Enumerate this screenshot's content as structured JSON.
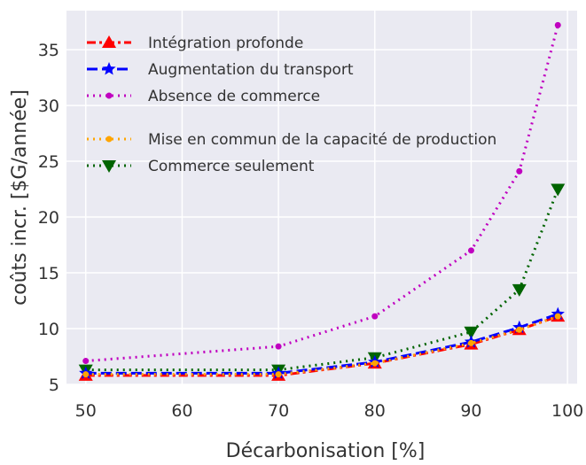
{
  "chart_data": {
    "type": "line",
    "title": "",
    "xlabel": "Décarbonisation [%]",
    "ylabel": "coûts incr. [$G/année]",
    "xlim": [
      48,
      101
    ],
    "ylim": [
      5,
      38.5
    ],
    "xticks": [
      {
        "value": 50,
        "label": "50"
      },
      {
        "value": 60,
        "label": "60"
      },
      {
        "value": 70,
        "label": "70"
      },
      {
        "value": 80,
        "label": "80"
      },
      {
        "value": 90,
        "label": "90"
      },
      {
        "value": 100,
        "label": "100"
      }
    ],
    "yticks": [
      {
        "value": 5,
        "label": "5"
      },
      {
        "value": 10,
        "label": "10"
      },
      {
        "value": 15,
        "label": "15"
      },
      {
        "value": 20,
        "label": "20"
      },
      {
        "value": 25,
        "label": "25"
      },
      {
        "value": 30,
        "label": "30"
      },
      {
        "value": 35,
        "label": "35"
      }
    ],
    "grid": true,
    "legend_position": "top-left",
    "x": [
      50,
      70,
      80,
      90,
      95,
      99
    ],
    "series": [
      {
        "name": "Intégration profonde",
        "color": "#ff0000",
        "dash": "dashdot",
        "marker": "triangle-up",
        "values": [
          5.8,
          5.8,
          6.9,
          8.6,
          9.9,
          11.1
        ]
      },
      {
        "name": "Augmentation du transport",
        "color": "#0000ff",
        "dash": "dashed",
        "marker": "star",
        "values": [
          6.0,
          6.0,
          7.0,
          8.8,
          10.1,
          11.3
        ]
      },
      {
        "name": "Absence de commerce",
        "color": "#c000c0",
        "dash": "dotted",
        "marker": "dot",
        "values": [
          7.1,
          8.4,
          11.1,
          17.0,
          24.1,
          37.2
        ]
      },
      {
        "name": "Mise en commun de la capacité de production",
        "color": "#ffa500",
        "dash": "dotted",
        "marker": "dot",
        "values": [
          5.9,
          5.9,
          6.9,
          8.7,
          9.9,
          11.1
        ]
      },
      {
        "name": "Commerce seulement",
        "color": "#006400",
        "dash": "dotted",
        "marker": "triangle-down",
        "values": [
          6.3,
          6.3,
          7.4,
          9.7,
          13.5,
          22.5
        ]
      }
    ],
    "background": "#eaeaf2",
    "grid_color": "#ffffff"
  }
}
